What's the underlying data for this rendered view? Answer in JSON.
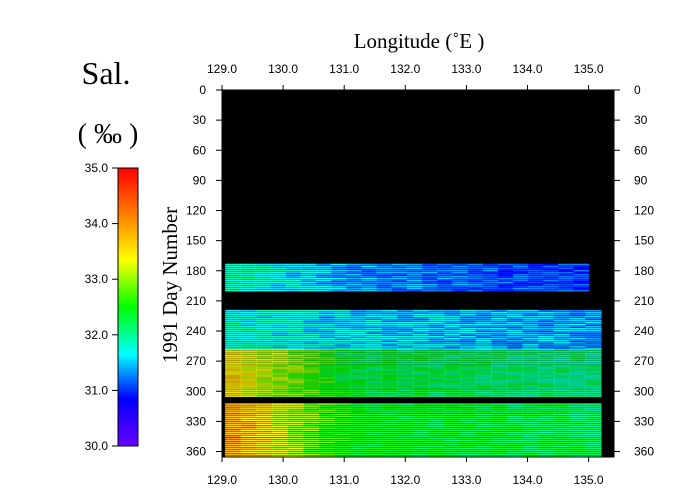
{
  "chart_data": {
    "type": "heatmap",
    "title": "",
    "xlabel": "Longitude  (˚E )",
    "ylabel": "1991  Day Number",
    "x_ticks": [
      "129.0",
      "130.0",
      "131.0",
      "132.0",
      "133.0",
      "134.0",
      "135.0"
    ],
    "y_ticks": [
      "0",
      "30",
      "60",
      "90",
      "120",
      "150",
      "180",
      "210",
      "240",
      "270",
      "300",
      "330",
      "360"
    ],
    "xlim": [
      129.0,
      135.5
    ],
    "ylim": [
      0,
      365
    ],
    "colorbar": {
      "title": "Sal.",
      "unit": "( ‰ )",
      "ticks": [
        "35.0",
        "34.0",
        "33.0",
        "32.0",
        "31.0",
        "30.0"
      ],
      "range": [
        30.0,
        35.0
      ],
      "colormap": [
        "#6a00ff",
        "#0000ff",
        "#00ffff",
        "#00ff00",
        "#ffff00",
        "#ff8000",
        "#ff0000"
      ]
    },
    "no_data_color": "#000000",
    "periods": [
      {
        "days": [
          173,
          200
        ],
        "lon": [
          129.05,
          135.0
        ],
        "salinity": {
          "west": 31.9,
          "mid": 31.4,
          "east": 31.0
        }
      },
      {
        "days": [
          219,
          258
        ],
        "lon": [
          129.05,
          135.2
        ],
        "salinity": {
          "west": 31.8,
          "mid": 31.6,
          "east": 31.4
        }
      },
      {
        "days": [
          258,
          305
        ],
        "lon": [
          129.05,
          135.2
        ],
        "salinity": {
          "west": 33.5,
          "mid": 32.3,
          "east": 32.0
        }
      },
      {
        "days": [
          312,
          365
        ],
        "lon": [
          129.05,
          135.2
        ],
        "salinity": {
          "west": 33.8,
          "mid": 32.4,
          "east": 32.1
        }
      }
    ]
  }
}
